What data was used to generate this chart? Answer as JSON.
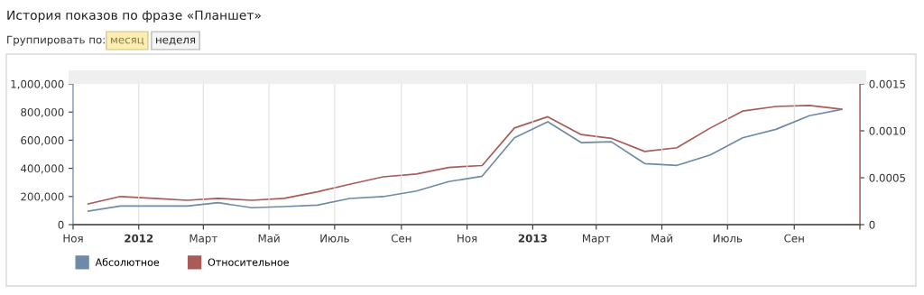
{
  "chart_data": {
    "type": "line",
    "title": "История показов по фразе «Планшет»",
    "annotations": [
      "Группировать по:",
      "месяц",
      "неделя"
    ],
    "x": [
      "2011-11-15",
      "2011-12-15",
      "2012-01-15",
      "2012-02-15",
      "2012-03-15",
      "2012-04-15",
      "2012-05-15",
      "2012-06-15",
      "2012-07-15",
      "2012-08-15",
      "2012-09-15",
      "2012-10-15",
      "2012-11-15",
      "2012-12-15",
      "2013-01-15",
      "2013-02-15",
      "2013-03-15",
      "2013-04-15",
      "2013-05-15",
      "2013-06-15",
      "2013-07-15",
      "2013-08-15",
      "2013-09-15",
      "2013-10-15"
    ],
    "series": [
      {
        "name": "Абсолютное",
        "color": "#6f8aa6",
        "values": [
          96000,
          132000,
          132000,
          132000,
          156000,
          120000,
          128000,
          139000,
          186000,
          199000,
          239000,
          306000,
          344000,
          617000,
          731000,
          583000,
          589000,
          434000,
          421000,
          495000,
          617000,
          677000,
          774000,
          819000
        ]
      },
      {
        "name": "Относительное",
        "color": "#a85b58",
        "axis": "y2",
        "values": [
          0.00022,
          0.0003,
          0.00028,
          0.00026,
          0.00028,
          0.00026,
          0.00028,
          0.00035,
          0.00043,
          0.00051,
          0.00054,
          0.00061,
          0.00063,
          0.00103,
          0.00115,
          0.00096,
          0.00092,
          0.00078,
          0.00082,
          0.00103,
          0.00121,
          0.00126,
          0.00127,
          0.00123
        ]
      }
    ],
    "xlim": [
      "2011-11-01",
      "2013-11-01"
    ],
    "xticks": [
      {
        "value": "2011-11-01",
        "label": "Ноя"
      },
      {
        "value": "2012-01-01",
        "label": "2012"
      },
      {
        "value": "2012-03-01",
        "label": "Март"
      },
      {
        "value": "2012-05-01",
        "label": "Май"
      },
      {
        "value": "2012-07-01",
        "label": "Июль"
      },
      {
        "value": "2012-09-01",
        "label": "Сен"
      },
      {
        "value": "2012-11-01",
        "label": "Ноя"
      },
      {
        "value": "2013-01-01",
        "label": "2013"
      },
      {
        "value": "2013-03-01",
        "label": "Март"
      },
      {
        "value": "2013-05-01",
        "label": "Май"
      },
      {
        "value": "2013-07-01",
        "label": "Июль"
      },
      {
        "value": "2013-09-01",
        "label": "Сен"
      },
      {
        "value": "2013-11-01",
        "label": null
      }
    ],
    "ylim": [
      0,
      1000000
    ],
    "yticks": [
      0,
      {
        "value": 200000,
        "label": "200,000"
      },
      {
        "value": 400000,
        "label": "400,000"
      },
      {
        "value": 600000,
        "label": "600,000"
      },
      {
        "value": 800000,
        "label": "800,000"
      },
      {
        "value": 1000000,
        "label": "1,000,000"
      }
    ],
    "y2lim": [
      0,
      0.0015
    ],
    "y2ticks": [
      0,
      0.0005,
      {
        "value": 0.001,
        "label": "0.0010"
      },
      0.0015
    ],
    "grid": "x",
    "legend": "bottom left",
    "marker": "none",
    "line_style": "solid"
  }
}
